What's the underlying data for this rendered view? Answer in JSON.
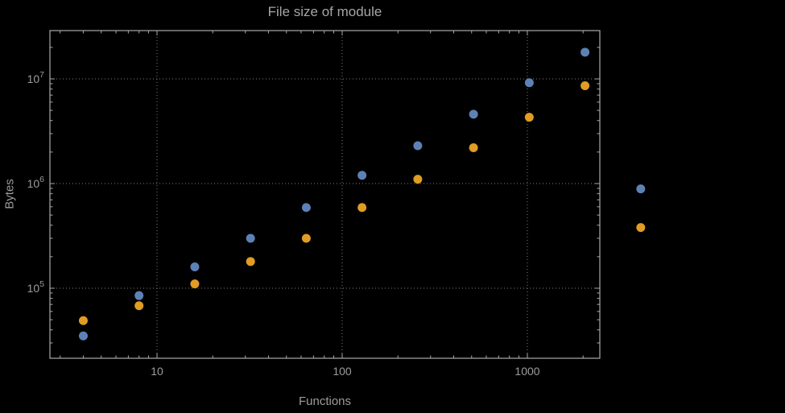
{
  "colors": {
    "background": "#000000",
    "series_blue": "#5E81B5",
    "series_orange": "#E19C24",
    "grid": "#7f7f7f",
    "frame": "#a9a9a9",
    "text": "#9c9c9c"
  },
  "chart_data": {
    "type": "scatter",
    "title": "File size of module",
    "xlabel": "Functions",
    "ylabel": "Bytes",
    "xscale": "log",
    "yscale": "log",
    "grid": true,
    "legend": "none",
    "xlim": [
      2.6,
      2460
    ],
    "ylim": [
      21000,
      27000000
    ],
    "x_ticks": [
      10,
      100,
      1000
    ],
    "x_tick_labels": [
      "10",
      "100",
      "1000"
    ],
    "y_ticks": [
      100000,
      1000000,
      10000000
    ],
    "y_tick_base": "10",
    "y_tick_exponents": [
      "5",
      "6",
      "7"
    ],
    "x": [
      4,
      8,
      16,
      32,
      64,
      128,
      256,
      512,
      1024,
      2048,
      4096
    ],
    "series": [
      {
        "name": "series-blue",
        "color": "#5E81B5",
        "values": [
          35000,
          85000,
          160000,
          300000,
          590000,
          1200000,
          2300000,
          4600000,
          9200000,
          18000000,
          890000
        ]
      },
      {
        "name": "series-orange",
        "color": "#E19C24",
        "values": [
          49000,
          68000,
          110000,
          180000,
          300000,
          590000,
          1100000,
          2200000,
          4300000,
          8600000,
          380000
        ]
      }
    ]
  }
}
